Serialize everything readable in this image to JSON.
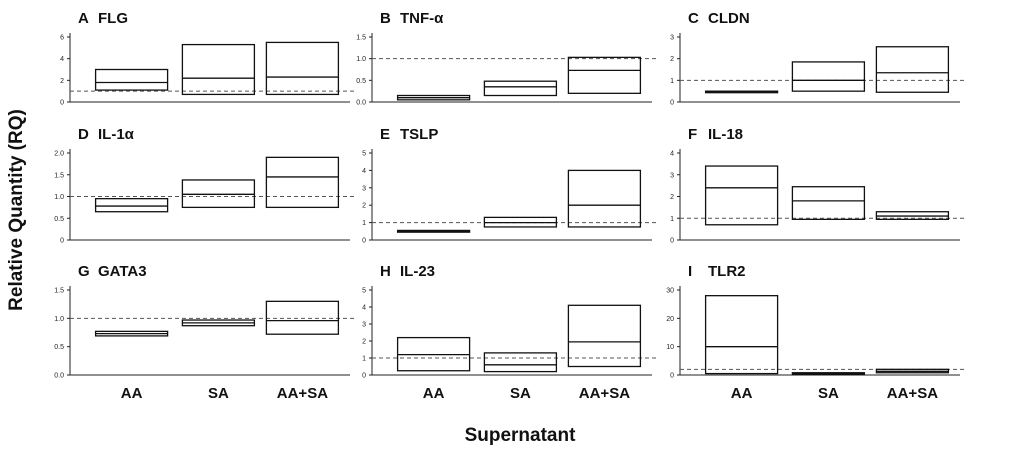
{
  "figure": {
    "ylabel": "Relative Quantity (RQ)",
    "xlabel": "Supernatant"
  },
  "chart_data": [
    {
      "letter": "A",
      "title": "FLG",
      "type": "boxplot",
      "categories": [
        "AA",
        "SA",
        "AA+SA"
      ],
      "ylim": [
        0,
        6
      ],
      "yticks": [
        "0",
        "2",
        "4",
        "6"
      ],
      "tick_values": [
        0,
        2,
        4,
        6
      ],
      "reference_line": 1,
      "boxes": [
        {
          "category": "AA",
          "low": 1.1,
          "median": 1.8,
          "high": 3.0
        },
        {
          "category": "SA",
          "low": 0.7,
          "median": 2.2,
          "high": 5.3
        },
        {
          "category": "AA+SA",
          "low": 0.7,
          "median": 2.3,
          "high": 5.5
        }
      ]
    },
    {
      "letter": "B",
      "title": "TNF-α",
      "type": "boxplot",
      "categories": [
        "AA",
        "SA",
        "AA+SA"
      ],
      "ylim": [
        0,
        1.5
      ],
      "yticks": [
        "0.0",
        "0.5",
        "1.0",
        "1.5"
      ],
      "tick_values": [
        0,
        0.5,
        1.0,
        1.5
      ],
      "reference_line": 1,
      "boxes": [
        {
          "category": "AA",
          "low": 0.05,
          "median": 0.1,
          "high": 0.15
        },
        {
          "category": "SA",
          "low": 0.15,
          "median": 0.35,
          "high": 0.48
        },
        {
          "category": "AA+SA",
          "low": 0.2,
          "median": 0.73,
          "high": 1.03
        }
      ]
    },
    {
      "letter": "C",
      "title": "CLDN",
      "type": "boxplot",
      "categories": [
        "AA",
        "SA",
        "AA+SA"
      ],
      "ylim": [
        0,
        3
      ],
      "yticks": [
        "0",
        "1",
        "2",
        "3"
      ],
      "tick_values": [
        0,
        1,
        2,
        3
      ],
      "reference_line": 1,
      "boxes": [
        {
          "category": "AA",
          "low": 0.46,
          "median": 0.48,
          "high": 0.5
        },
        {
          "category": "SA",
          "low": 0.5,
          "median": 1.0,
          "high": 1.85
        },
        {
          "category": "AA+SA",
          "low": 0.45,
          "median": 1.35,
          "high": 2.55
        }
      ]
    },
    {
      "letter": "D",
      "title": "IL-1α",
      "type": "boxplot",
      "categories": [
        "AA",
        "SA",
        "AA+SA"
      ],
      "ylim": [
        0,
        2.0
      ],
      "yticks": [
        "0",
        "0.5",
        "1.0",
        "1.5",
        "2.0"
      ],
      "tick_values": [
        0,
        0.5,
        1.0,
        1.5,
        2.0
      ],
      "reference_line": 1,
      "boxes": [
        {
          "category": "AA",
          "low": 0.65,
          "median": 0.78,
          "high": 0.95
        },
        {
          "category": "SA",
          "low": 0.75,
          "median": 1.05,
          "high": 1.38
        },
        {
          "category": "AA+SA",
          "low": 0.75,
          "median": 1.45,
          "high": 1.9
        }
      ]
    },
    {
      "letter": "E",
      "title": "TSLP",
      "type": "boxplot",
      "categories": [
        "AA",
        "SA",
        "AA+SA"
      ],
      "ylim": [
        0,
        5
      ],
      "yticks": [
        "0",
        "1",
        "2",
        "3",
        "4",
        "5"
      ],
      "tick_values": [
        0,
        1,
        2,
        3,
        4,
        5
      ],
      "reference_line": 1,
      "boxes": [
        {
          "category": "AA",
          "low": 0.45,
          "median": 0.5,
          "high": 0.55
        },
        {
          "category": "SA",
          "low": 0.75,
          "median": 1.0,
          "high": 1.3
        },
        {
          "category": "AA+SA",
          "low": 0.75,
          "median": 2.0,
          "high": 4.0
        }
      ]
    },
    {
      "letter": "F",
      "title": "IL-18",
      "type": "boxplot",
      "categories": [
        "AA",
        "SA",
        "AA+SA"
      ],
      "ylim": [
        0,
        4
      ],
      "yticks": [
        "0",
        "1",
        "2",
        "3",
        "4"
      ],
      "tick_values": [
        0,
        1,
        2,
        3,
        4
      ],
      "reference_line": 1,
      "boxes": [
        {
          "category": "AA",
          "low": 0.7,
          "median": 2.4,
          "high": 3.4
        },
        {
          "category": "SA",
          "low": 0.95,
          "median": 1.8,
          "high": 2.45
        },
        {
          "category": "AA+SA",
          "low": 0.95,
          "median": 1.1,
          "high": 1.3
        }
      ]
    },
    {
      "letter": "G",
      "title": "GATA3",
      "type": "boxplot",
      "categories": [
        "AA",
        "SA",
        "AA+SA"
      ],
      "ylim": [
        0,
        1.5
      ],
      "yticks": [
        "0.0",
        "0.5",
        "1.0",
        "1.5"
      ],
      "tick_values": [
        0,
        0.5,
        1.0,
        1.5
      ],
      "reference_line": 1,
      "boxes": [
        {
          "category": "AA",
          "low": 0.69,
          "median": 0.73,
          "high": 0.77
        },
        {
          "category": "SA",
          "low": 0.87,
          "median": 0.92,
          "high": 0.97
        },
        {
          "category": "AA+SA",
          "low": 0.72,
          "median": 0.96,
          "high": 1.3
        }
      ]
    },
    {
      "letter": "H",
      "title": "IL-23",
      "type": "boxplot",
      "categories": [
        "AA",
        "SA",
        "AA+SA"
      ],
      "ylim": [
        0,
        5
      ],
      "yticks": [
        "0",
        "1",
        "2",
        "3",
        "4",
        "5"
      ],
      "tick_values": [
        0,
        1,
        2,
        3,
        4,
        5
      ],
      "reference_line": 1,
      "boxes": [
        {
          "category": "AA",
          "low": 0.25,
          "median": 1.2,
          "high": 2.2
        },
        {
          "category": "SA",
          "low": 0.2,
          "median": 0.6,
          "high": 1.3
        },
        {
          "category": "AA+SA",
          "low": 0.5,
          "median": 1.95,
          "high": 4.1
        }
      ]
    },
    {
      "letter": "I",
      "title": "TLR2",
      "type": "boxplot",
      "categories": [
        "AA",
        "SA",
        "AA+SA"
      ],
      "ylim": [
        0,
        30
      ],
      "yticks": [
        "0",
        "10",
        "20",
        "30"
      ],
      "tick_values": [
        0,
        10,
        20,
        30
      ],
      "reference_line": 2,
      "boxes": [
        {
          "category": "AA",
          "low": 0.5,
          "median": 10,
          "high": 28
        },
        {
          "category": "SA",
          "low": 0.2,
          "median": 0.5,
          "high": 0.8
        },
        {
          "category": "AA+SA",
          "low": 0.8,
          "median": 1.3,
          "high": 2.0
        }
      ]
    }
  ]
}
